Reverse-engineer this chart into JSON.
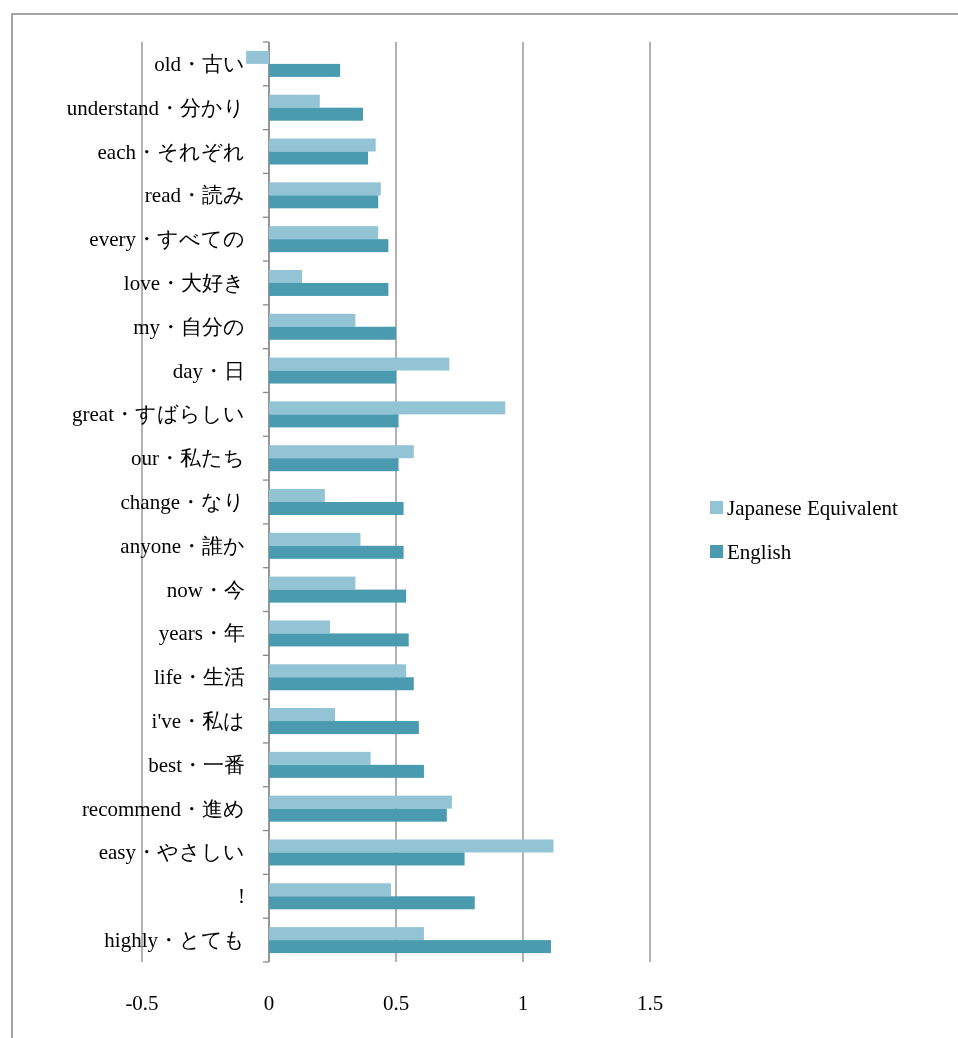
{
  "chart_data": {
    "type": "bar",
    "orientation": "horizontal",
    "categories": [
      "old・古い",
      "understand・分かり",
      "each・それぞれ",
      "read・読み",
      "every・すべての",
      "love・大好き",
      "my・自分の",
      "day・日",
      "great・すばらしい",
      "our・私たち",
      "change・なり",
      "anyone・誰か",
      "now・今",
      "years・年",
      "life・生活",
      "i've・私は",
      "best・一番",
      "recommend・進め",
      "easy・やさしい",
      "!",
      "highly・とても"
    ],
    "series": [
      {
        "name": "Japanese Equivalent",
        "color": "#93c4d5",
        "values": [
          -0.09,
          0.2,
          0.42,
          0.44,
          0.43,
          0.13,
          0.34,
          0.71,
          0.93,
          0.57,
          0.22,
          0.36,
          0.34,
          0.24,
          0.54,
          0.26,
          0.4,
          0.72,
          1.12,
          0.48,
          0.61
        ]
      },
      {
        "name": "English",
        "color": "#4a9bb0",
        "values": [
          0.28,
          0.37,
          0.39,
          0.43,
          0.47,
          0.47,
          0.5,
          0.5,
          0.51,
          0.51,
          0.53,
          0.53,
          0.54,
          0.55,
          0.57,
          0.59,
          0.61,
          0.7,
          0.77,
          0.81,
          1.11
        ]
      }
    ],
    "xlim": [
      -0.5,
      1.5
    ],
    "xticks": [
      -0.5,
      0,
      0.5,
      1,
      1.5
    ],
    "grid": "x",
    "legend": "right"
  }
}
